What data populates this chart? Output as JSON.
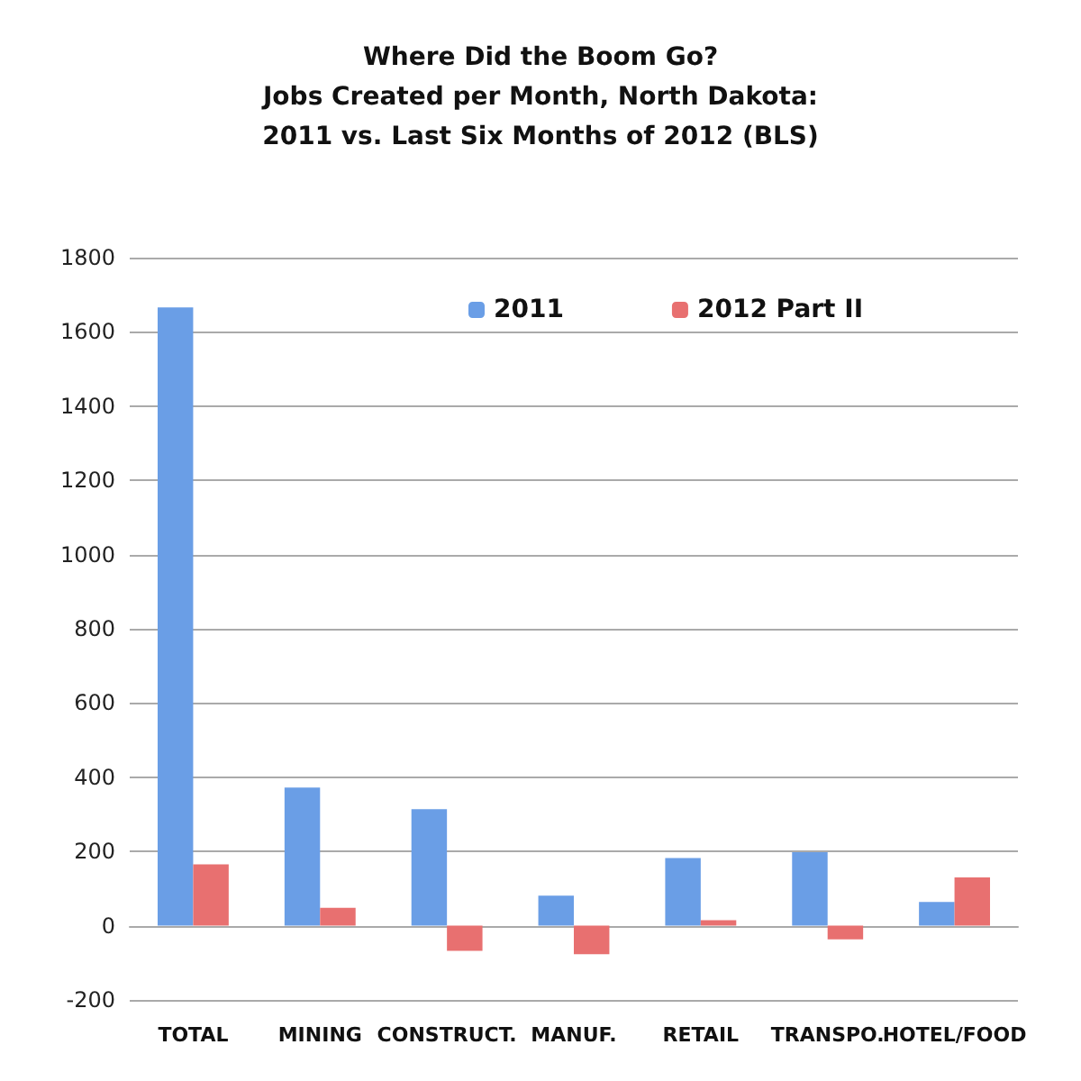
{
  "chart_data": {
    "type": "bar",
    "title": "Where Did the Boom Go?\nJobs Created per Month, North Dakota:\n2011 vs. Last Six Months of 2012 (BLS)",
    "categories": [
      "TOTAL",
      "MINING",
      "CONSTRUCT.",
      "MANUF.",
      "RETAIL",
      "TRANSPO.",
      "HOTEL/FOOD"
    ],
    "series": [
      {
        "name": "2011",
        "color": "#6a9ee6",
        "values": [
          1666,
          372,
          314,
          81,
          182,
          198,
          64
        ]
      },
      {
        "name": "2012 Part II",
        "color": "#e87070",
        "values": [
          165,
          48,
          -68,
          -77,
          15,
          -37,
          130
        ]
      }
    ],
    "ylim": [
      -200,
      1800
    ],
    "yticks": [
      -200,
      0,
      200,
      400,
      600,
      800,
      1000,
      1200,
      1400,
      1600,
      1800
    ],
    "grid": "y",
    "legend": "top"
  }
}
